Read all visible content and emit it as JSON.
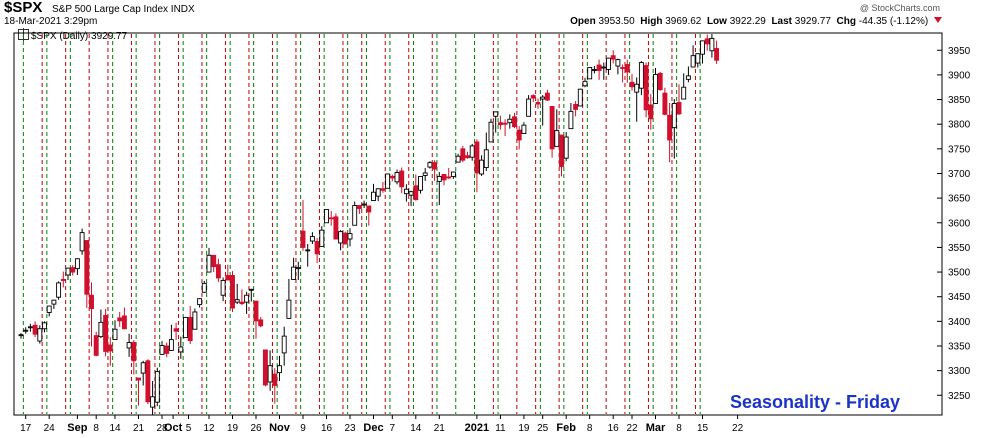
{
  "header": {
    "symbol": "$SPX",
    "description": "S&P 500 Large Cap Index  INDX",
    "date_time": "18-Mar-2021 3:29pm",
    "watermark": "@ StockCharts.com",
    "open_label": "Open",
    "open_value": "3953.50",
    "high_label": "High",
    "high_value": "3969.62",
    "low_label": "Low",
    "low_value": "3922.29",
    "last_label": "Last",
    "last_value": "3929.77",
    "chg_label": "Chg",
    "chg_value": "-44.35 (-1.12%)",
    "legend": "$SPX (Daily) 3929.77"
  },
  "annotation": "Seasonality - Friday",
  "chart_data": {
    "type": "candlestick",
    "title": "$SPX S&P 500 Large Cap Index INDX",
    "y_axis": {
      "side": "right",
      "ylim": [
        3210,
        3985
      ],
      "ticks": [
        3250,
        3300,
        3350,
        3400,
        3450,
        3500,
        3550,
        3600,
        3650,
        3700,
        3750,
        3800,
        3850,
        3900,
        3950
      ]
    },
    "x_axis": {
      "ticks": [
        "17",
        "24",
        "Sep",
        "8",
        "14",
        "21",
        "28",
        "Oct",
        "5",
        "12",
        "19",
        "26",
        "Nov",
        "9",
        "16",
        "23",
        "Dec",
        "7",
        "14",
        "21",
        "2021",
        "11",
        "19",
        "25",
        "Feb",
        "8",
        "16",
        "22",
        "Mar",
        "8",
        "15",
        "22"
      ],
      "bold_ticks": [
        "Sep",
        "Oct",
        "Nov",
        "Dec",
        "2021",
        "Feb",
        "Mar"
      ]
    },
    "colors": {
      "up": "#ffffff",
      "down": "#d0102c",
      "outline": "#000000",
      "doji": "#000000",
      "friday_line": "#c00000",
      "monday_line": "#008000",
      "annotation": "#1c33c8"
    },
    "week_lines": [
      "red-dashed = Friday",
      "green-dashed = Monday"
    ],
    "candles": [
      [
        "Aug 14",
        3373,
        3376,
        3365,
        3373
      ],
      [
        "Aug 17",
        3380,
        3388,
        3375,
        3382
      ],
      [
        "Aug 18",
        3387,
        3395,
        3379,
        3389
      ],
      [
        "Aug 19",
        3392,
        3400,
        3368,
        3374
      ],
      [
        "Aug 20",
        3360,
        3392,
        3355,
        3385
      ],
      [
        "Aug 21",
        3385,
        3400,
        3378,
        3397
      ],
      [
        "Aug 24",
        3418,
        3432,
        3410,
        3431
      ],
      [
        "Aug 25",
        3435,
        3444,
        3425,
        3443
      ],
      [
        "Aug 26",
        3449,
        3481,
        3444,
        3478
      ],
      [
        "Aug 27",
        3485,
        3501,
        3469,
        3484
      ],
      [
        "Aug 28",
        3494,
        3509,
        3484,
        3508
      ],
      [
        "Aug 31",
        3509,
        3514,
        3493,
        3500
      ],
      [
        "Sep 1",
        3507,
        3528,
        3494,
        3527
      ],
      [
        "Sep 2",
        3543,
        3588,
        3535,
        3580
      ],
      [
        "Sep 3",
        3564,
        3564,
        3427,
        3455
      ],
      [
        "Sep 4",
        3453,
        3479,
        3349,
        3426
      ],
      [
        "Sep 8",
        3371,
        3379,
        3329,
        3331
      ],
      [
        "Sep 9",
        3369,
        3424,
        3366,
        3398
      ],
      [
        "Sep 10",
        3412,
        3425,
        3329,
        3339
      ],
      [
        "Sep 11",
        3352,
        3368,
        3310,
        3340
      ],
      [
        "Sep 14",
        3363,
        3402,
        3363,
        3384
      ],
      [
        "Sep 15",
        3407,
        3419,
        3389,
        3401
      ],
      [
        "Sep 16",
        3411,
        3428,
        3384,
        3385
      ],
      [
        "Sep 17",
        3346,
        3375,
        3328,
        3357
      ],
      [
        "Sep 18",
        3357,
        3362,
        3292,
        3320
      ],
      [
        "Sep 21",
        3285,
        3285,
        3229,
        3281
      ],
      [
        "Sep 22",
        3295,
        3320,
        3270,
        3316
      ],
      [
        "Sep 23",
        3320,
        3323,
        3232,
        3237
      ],
      [
        "Sep 24",
        3226,
        3279,
        3209,
        3247
      ],
      [
        "Sep 25",
        3236,
        3306,
        3228,
        3298
      ],
      [
        "Sep 28",
        3333,
        3360,
        3332,
        3351
      ],
      [
        "Sep 29",
        3350,
        3357,
        3327,
        3335
      ],
      [
        "Sep 30",
        3341,
        3393,
        3340,
        3363
      ],
      [
        "Oct 1",
        3385,
        3397,
        3362,
        3380
      ],
      [
        "Oct 2",
        3338,
        3369,
        3324,
        3348
      ],
      [
        "Oct 5",
        3367,
        3409,
        3367,
        3408
      ],
      [
        "Oct 6",
        3408,
        3431,
        3354,
        3361
      ],
      [
        "Oct 7",
        3384,
        3426,
        3384,
        3419
      ],
      [
        "Oct 8",
        3434,
        3447,
        3428,
        3446
      ],
      [
        "Oct 9",
        3459,
        3482,
        3458,
        3477
      ],
      [
        "Oct 12",
        3500,
        3549,
        3500,
        3534
      ],
      [
        "Oct 13",
        3534,
        3534,
        3500,
        3511
      ],
      [
        "Oct 14",
        3515,
        3527,
        3480,
        3488
      ],
      [
        "Oct 15",
        3453,
        3489,
        3441,
        3483
      ],
      [
        "Oct 16",
        3493,
        3515,
        3483,
        3484
      ],
      [
        "Oct 19",
        3493,
        3502,
        3419,
        3427
      ],
      [
        "Oct 20",
        3439,
        3476,
        3435,
        3444
      ],
      [
        "Oct 21",
        3439,
        3465,
        3433,
        3436
      ],
      [
        "Oct 22",
        3439,
        3460,
        3415,
        3453
      ],
      [
        "Oct 23",
        3464,
        3466,
        3440,
        3465
      ],
      [
        "Oct 26",
        3441,
        3441,
        3365,
        3401
      ],
      [
        "Oct 27",
        3403,
        3409,
        3388,
        3391
      ],
      [
        "Oct 28",
        3342,
        3342,
        3268,
        3271
      ],
      [
        "Oct 29",
        3277,
        3341,
        3259,
        3310
      ],
      [
        "Oct 30",
        3293,
        3305,
        3233,
        3270
      ],
      [
        "Nov 2",
        3296,
        3330,
        3279,
        3310
      ],
      [
        "Nov 3",
        3336,
        3389,
        3310,
        3370
      ],
      [
        "Nov 4",
        3406,
        3486,
        3405,
        3443
      ],
      [
        "Nov 5",
        3485,
        3529,
        3485,
        3510
      ],
      [
        "Nov 6",
        3508,
        3521,
        3484,
        3509
      ],
      [
        "Nov 9",
        3583,
        3646,
        3543,
        3550
      ],
      [
        "Nov 10",
        3543,
        3557,
        3511,
        3545
      ],
      [
        "Nov 11",
        3563,
        3581,
        3557,
        3572
      ],
      [
        "Nov 12",
        3562,
        3569,
        3518,
        3537
      ],
      [
        "Nov 13",
        3552,
        3593,
        3552,
        3585
      ],
      [
        "Nov 16",
        3600,
        3628,
        3600,
        3627
      ],
      [
        "Nov 17",
        3610,
        3624,
        3594,
        3609
      ],
      [
        "Nov 18",
        3612,
        3619,
        3567,
        3567
      ],
      [
        "Nov 19",
        3559,
        3585,
        3544,
        3582
      ],
      [
        "Nov 20",
        3579,
        3582,
        3556,
        3557
      ],
      [
        "Nov 23",
        3567,
        3589,
        3552,
        3578
      ],
      [
        "Nov 24",
        3595,
        3643,
        3595,
        3635
      ],
      [
        "Nov 25",
        3635,
        3635,
        3618,
        3629
      ],
      [
        "Nov 27",
        3638,
        3645,
        3630,
        3638
      ],
      [
        "Nov 30",
        3634,
        3635,
        3594,
        3622
      ],
      [
        "Dec 1",
        3645,
        3679,
        3645,
        3662
      ],
      [
        "Dec 2",
        3654,
        3670,
        3644,
        3669
      ],
      [
        "Dec 3",
        3669,
        3683,
        3661,
        3666
      ],
      [
        "Dec 4",
        3670,
        3699,
        3670,
        3699
      ],
      [
        "Dec 7",
        3694,
        3698,
        3684,
        3691
      ],
      [
        "Dec 8",
        3683,
        3708,
        3678,
        3702
      ],
      [
        "Dec 9",
        3705,
        3712,
        3660,
        3673
      ],
      [
        "Dec 10",
        3659,
        3678,
        3643,
        3668
      ],
      [
        "Dec 11",
        3656,
        3665,
        3634,
        3663
      ],
      [
        "Dec 14",
        3675,
        3698,
        3645,
        3647
      ],
      [
        "Dec 15",
        3666,
        3695,
        3659,
        3694
      ],
      [
        "Dec 16",
        3696,
        3711,
        3685,
        3701
      ],
      [
        "Dec 17",
        3713,
        3725,
        3710,
        3722
      ],
      [
        "Dec 18",
        3722,
        3727,
        3685,
        3709
      ],
      [
        "Dec 21",
        3684,
        3703,
        3636,
        3694
      ],
      [
        "Dec 22",
        3698,
        3698,
        3676,
        3687
      ],
      [
        "Dec 23",
        3693,
        3711,
        3689,
        3691
      ],
      [
        "Dec 24",
        3694,
        3703,
        3689,
        3703
      ],
      [
        "Dec 28",
        3723,
        3740,
        3723,
        3735
      ],
      [
        "Dec 29",
        3750,
        3756,
        3723,
        3727
      ],
      [
        "Dec 30",
        3736,
        3744,
        3730,
        3732
      ],
      [
        "Dec 31",
        3733,
        3760,
        3726,
        3756
      ],
      [
        "Jan 4",
        3764,
        3769,
        3662,
        3701
      ],
      [
        "Jan 5",
        3699,
        3737,
        3695,
        3727
      ],
      [
        "Jan 6",
        3712,
        3783,
        3705,
        3748
      ],
      [
        "Jan 7",
        3764,
        3811,
        3764,
        3804
      ],
      [
        "Jan 8",
        3816,
        3826,
        3783,
        3825
      ],
      [
        "Jan 11",
        3803,
        3817,
        3789,
        3799
      ],
      [
        "Jan 12",
        3802,
        3810,
        3776,
        3801
      ],
      [
        "Jan 13",
        3803,
        3820,
        3791,
        3810
      ],
      [
        "Jan 14",
        3815,
        3823,
        3792,
        3795
      ],
      [
        "Jan 15",
        3788,
        3796,
        3749,
        3768
      ],
      [
        "Jan 19",
        3781,
        3804,
        3780,
        3798
      ],
      [
        "Jan 20",
        3816,
        3859,
        3816,
        3851
      ],
      [
        "Jan 21",
        3858,
        3861,
        3845,
        3853
      ],
      [
        "Jan 22",
        3844,
        3852,
        3831,
        3841
      ],
      [
        "Jan 25",
        3851,
        3859,
        3797,
        3855
      ],
      [
        "Jan 26",
        3863,
        3870,
        3847,
        3849
      ],
      [
        "Jan 27",
        3836,
        3836,
        3732,
        3750
      ],
      [
        "Jan 28",
        3755,
        3830,
        3755,
        3787
      ],
      [
        "Jan 29",
        3778,
        3778,
        3694,
        3714
      ],
      [
        "Feb 1",
        3731,
        3784,
        3725,
        3774
      ],
      [
        "Feb 2",
        3791,
        3843,
        3791,
        3826
      ],
      [
        "Feb 3",
        3840,
        3847,
        3816,
        3830
      ],
      [
        "Feb 4",
        3837,
        3872,
        3837,
        3871
      ],
      [
        "Feb 5",
        3878,
        3894,
        3875,
        3887
      ],
      [
        "Feb 8",
        3892,
        3915,
        3892,
        3915
      ],
      [
        "Feb 9",
        3910,
        3918,
        3903,
        3911
      ],
      [
        "Feb 10",
        3920,
        3931,
        3890,
        3909
      ],
      [
        "Feb 11",
        3916,
        3925,
        3890,
        3916
      ],
      [
        "Feb 12",
        3911,
        3935,
        3900,
        3934
      ],
      [
        "Feb 16",
        3939,
        3950,
        3923,
        3932
      ],
      [
        "Feb 17",
        3918,
        3933,
        3901,
        3931
      ],
      [
        "Feb 18",
        3915,
        3921,
        3885,
        3913
      ],
      [
        "Feb 19",
        3921,
        3931,
        3884,
        3906
      ],
      [
        "Feb 22",
        3885,
        3902,
        3868,
        3876
      ],
      [
        "Feb 23",
        3865,
        3895,
        3805,
        3881
      ],
      [
        "Feb 24",
        3873,
        3928,
        3859,
        3925
      ],
      [
        "Feb 25",
        3919,
        3925,
        3814,
        3829
      ],
      [
        "Feb 26",
        3839,
        3861,
        3789,
        3811
      ],
      [
        "Mar 1",
        3842,
        3914,
        3842,
        3901
      ],
      [
        "Mar 2",
        3903,
        3906,
        3868,
        3870
      ],
      [
        "Mar 3",
        3863,
        3874,
        3818,
        3820
      ],
      [
        "Mar 4",
        3818,
        3843,
        3723,
        3768
      ],
      [
        "Mar 5",
        3793,
        3851,
        3730,
        3842
      ],
      [
        "Mar 8",
        3844,
        3881,
        3819,
        3821
      ],
      [
        "Mar 9",
        3851,
        3903,
        3851,
        3875
      ],
      [
        "Mar 10",
        3891,
        3917,
        3885,
        3898
      ],
      [
        "Mar 11",
        3916,
        3960,
        3916,
        3939
      ],
      [
        "Mar 12",
        3924,
        3944,
        3915,
        3943
      ],
      [
        "Mar 15",
        3942,
        3970,
        3923,
        3969
      ],
      [
        "Mar 16",
        3973,
        3982,
        3949,
        3963
      ],
      [
        "Mar 17",
        3949,
        3983,
        3935,
        3974
      ],
      [
        "Mar 18",
        3953.5,
        3969.62,
        3922.29,
        3929.77
      ]
    ]
  }
}
